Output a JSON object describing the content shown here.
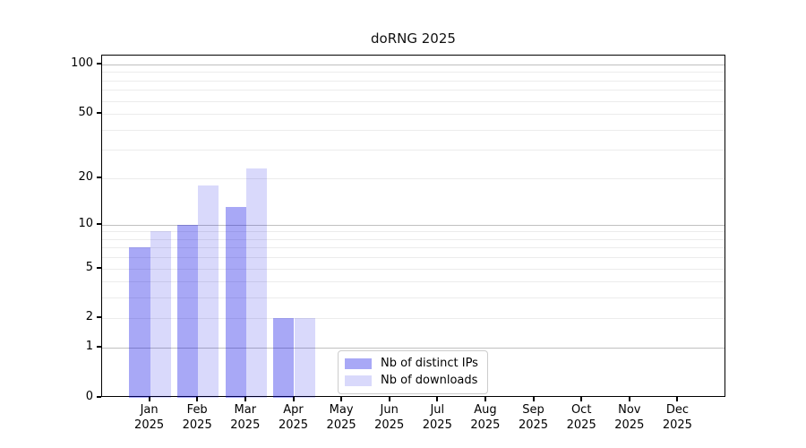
{
  "title": "doRNG 2025",
  "colors": {
    "bar_ips_hex": "#a8a8f6",
    "bar_downloads_hex": "#d9d9fb",
    "bar_base_rgba_ips": "rgba(0,0,230,0.34)",
    "bar_base_rgba_downloads": "rgba(0,0,230,0.15)",
    "grid_major": "#c0c0c0",
    "grid_minor": "#ececec",
    "spine": "#000000",
    "legend_border": "#cccccc"
  },
  "chart_data": {
    "type": "bar",
    "title": "doRNG 2025",
    "categories": [
      "Jan",
      "Feb",
      "Mar",
      "Apr",
      "May",
      "Jun",
      "Jul",
      "Aug",
      "Sep",
      "Oct",
      "Nov",
      "Dec"
    ],
    "category_year": "2025",
    "series": [
      {
        "name": "Nb of distinct IPs",
        "color_hex": "#a8a8f6",
        "color_rgba": "rgba(0,0,230,0.34)",
        "values": [
          7,
          10,
          13,
          2,
          0,
          0,
          0,
          0,
          0,
          0,
          0,
          0
        ]
      },
      {
        "name": "Nb of downloads",
        "color_hex": "#d9d9fb",
        "color_rgba": "rgba(0,0,230,0.15)",
        "values": [
          9,
          18,
          23,
          2,
          0,
          0,
          0,
          0,
          0,
          0,
          0,
          0
        ]
      }
    ],
    "xlabel": "",
    "ylabel": "",
    "yscale": "log1p",
    "ylim": [
      0,
      113
    ],
    "yticks": [
      0,
      1,
      2,
      5,
      10,
      20,
      50,
      100
    ],
    "grid_major_values": [
      1,
      10,
      100
    ],
    "grid_minor_values": [
      2,
      3,
      4,
      5,
      6,
      7,
      8,
      9,
      20,
      30,
      40,
      50,
      60,
      70,
      80,
      90
    ],
    "grid": true,
    "legend_position": "bottom-center"
  }
}
